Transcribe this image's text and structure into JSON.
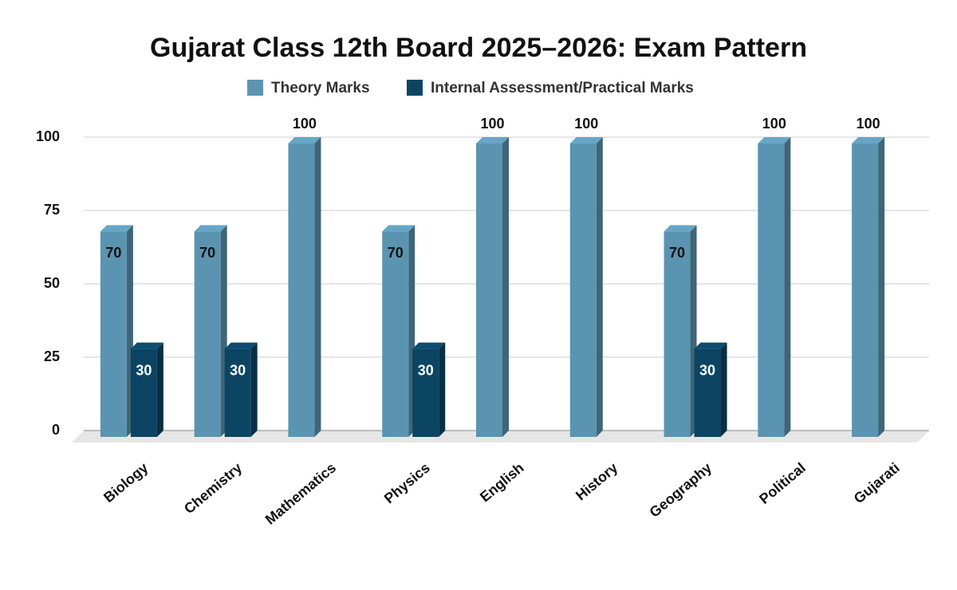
{
  "chart_data": {
    "type": "bar3d",
    "title": "Gujarat Class 12th Board 2025–2026: Exam Pattern",
    "categories": [
      "Biology",
      "Chemistry",
      "Mathematics",
      "Physics",
      "English",
      "History",
      "Geography",
      "Political",
      "Gujarati"
    ],
    "series": [
      {
        "name": "Theory Marks",
        "color": "#5b94b1",
        "values": [
          70,
          70,
          100,
          70,
          100,
          100,
          70,
          100,
          100
        ]
      },
      {
        "name": "Internal Assessment/Practical Marks",
        "color": "#0c4563",
        "values": [
          30,
          30,
          null,
          30,
          null,
          null,
          30,
          null,
          null
        ]
      }
    ],
    "ylim": [
      0,
      100
    ],
    "yticks": [
      0,
      25,
      50,
      75,
      100
    ],
    "grid": true,
    "legend": "top"
  }
}
